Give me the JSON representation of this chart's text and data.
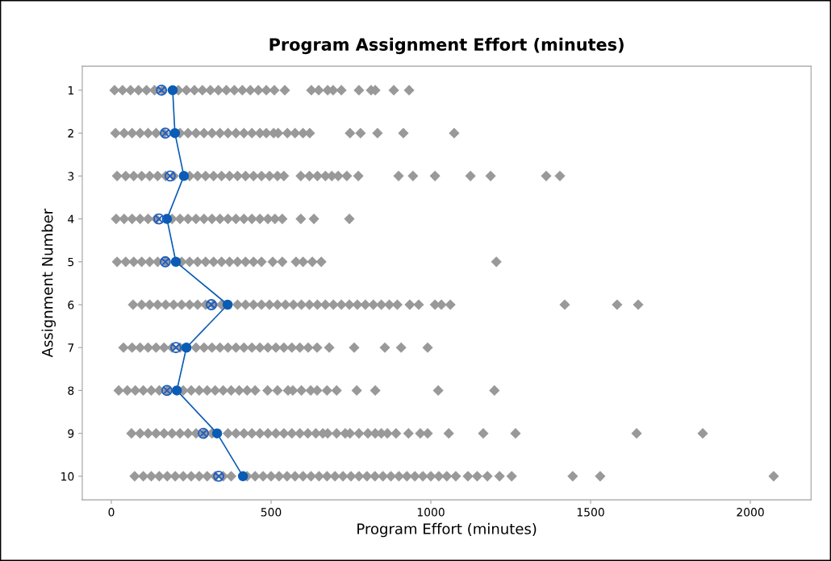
{
  "chart_data": {
    "type": "scatter",
    "title": "Program Assignment Effort (minutes)",
    "xlabel": "Program Effort (minutes)",
    "ylabel": "Assignment Number",
    "xlim": [
      -91,
      2190
    ],
    "xticks": [
      0,
      500,
      1000,
      1500,
      2000
    ],
    "ylim": [
      10.55,
      0.44
    ],
    "yticks": [
      1,
      2,
      3,
      4,
      5,
      6,
      7,
      8,
      9,
      10
    ],
    "grid": false,
    "series": [
      {
        "marker": "diamond",
        "color": "#999999",
        "x": [
          10,
          35,
          60,
          85,
          110,
          135,
          160,
          210,
          235,
          260,
          285,
          310,
          335,
          360,
          385,
          410,
          435,
          460,
          485,
          510,
          543,
          626,
          649,
          677,
          694,
          720,
          775,
          813,
          826,
          884,
          932
        ],
        "values": [
          1,
          1,
          1,
          1,
          1,
          1,
          1,
          1,
          1,
          1,
          1,
          1,
          1,
          1,
          1,
          1,
          1,
          1,
          1,
          1,
          1,
          1,
          1,
          1,
          1,
          1,
          1,
          1,
          1,
          1,
          1
        ]
      },
      {
        "marker": "diamond",
        "color": "#999999",
        "x": [
          13,
          40,
          65,
          90,
          115,
          140,
          165,
          215,
          240,
          265,
          290,
          315,
          340,
          365,
          390,
          415,
          440,
          465,
          485,
          508,
          522,
          551,
          575,
          600,
          621,
          747,
          780,
          833,
          914,
          1073
        ],
        "values": [
          2,
          2,
          2,
          2,
          2,
          2,
          2,
          2,
          2,
          2,
          2,
          2,
          2,
          2,
          2,
          2,
          2,
          2,
          2,
          2,
          2,
          2,
          2,
          2,
          2,
          2,
          2,
          2,
          2,
          2
        ]
      },
      {
        "marker": "diamond",
        "color": "#999999",
        "x": [
          18,
          45,
          70,
          95,
          120,
          145,
          170,
          195,
          245,
          270,
          295,
          320,
          345,
          370,
          395,
          420,
          445,
          470,
          495,
          520,
          540,
          593,
          620,
          645,
          670,
          690,
          710,
          737,
          773,
          899,
          944,
          1013,
          1124,
          1187,
          1361,
          1404
        ],
        "values": [
          3,
          3,
          3,
          3,
          3,
          3,
          3,
          3,
          3,
          3,
          3,
          3,
          3,
          3,
          3,
          3,
          3,
          3,
          3,
          3,
          3,
          3,
          3,
          3,
          3,
          3,
          3,
          3,
          3,
          3,
          3,
          3,
          3,
          3,
          3,
          3
        ]
      },
      {
        "marker": "diamond",
        "color": "#999999",
        "x": [
          15,
          40,
          65,
          90,
          115,
          140,
          190,
          215,
          240,
          265,
          290,
          315,
          340,
          365,
          390,
          415,
          440,
          465,
          490,
          512,
          535,
          593,
          634,
          745
        ],
        "values": [
          4,
          4,
          4,
          4,
          4,
          4,
          4,
          4,
          4,
          4,
          4,
          4,
          4,
          4,
          4,
          4,
          4,
          4,
          4,
          4,
          4,
          4,
          4,
          4
        ]
      },
      {
        "marker": "diamond",
        "color": "#999999",
        "x": [
          18,
          45,
          70,
          95,
          120,
          145,
          170,
          220,
          245,
          270,
          295,
          320,
          345,
          370,
          395,
          420,
          445,
          470,
          505,
          535,
          578,
          600,
          629,
          657,
          1205
        ],
        "values": [
          5,
          5,
          5,
          5,
          5,
          5,
          5,
          5,
          5,
          5,
          5,
          5,
          5,
          5,
          5,
          5,
          5,
          5,
          5,
          5,
          5,
          5,
          5,
          5,
          5
        ]
      },
      {
        "marker": "diamond",
        "color": "#999999",
        "x": [
          68,
          95,
          120,
          145,
          170,
          195,
          220,
          245,
          270,
          295,
          320,
          345,
          395,
          420,
          445,
          470,
          495,
          520,
          545,
          570,
          595,
          620,
          645,
          670,
          695,
          720,
          745,
          770,
          795,
          820,
          845,
          870,
          895,
          934,
          962,
          1013,
          1033,
          1061,
          1419,
          1583,
          1649
        ],
        "values": [
          6,
          6,
          6,
          6,
          6,
          6,
          6,
          6,
          6,
          6,
          6,
          6,
          6,
          6,
          6,
          6,
          6,
          6,
          6,
          6,
          6,
          6,
          6,
          6,
          6,
          6,
          6,
          6,
          6,
          6,
          6,
          6,
          6,
          6,
          6,
          6,
          6,
          6,
          6,
          6,
          6
        ]
      },
      {
        "marker": "diamond",
        "color": "#999999",
        "x": [
          38,
          65,
          90,
          115,
          140,
          165,
          190,
          215,
          265,
          290,
          315,
          340,
          365,
          390,
          415,
          440,
          465,
          490,
          515,
          540,
          565,
          590,
          616,
          644,
          682,
          760,
          856,
          907,
          990
        ],
        "values": [
          7,
          7,
          7,
          7,
          7,
          7,
          7,
          7,
          7,
          7,
          7,
          7,
          7,
          7,
          7,
          7,
          7,
          7,
          7,
          7,
          7,
          7,
          7,
          7,
          7,
          7,
          7,
          7,
          7
        ]
      },
      {
        "marker": "diamond",
        "color": "#999999",
        "x": [
          23,
          50,
          75,
          100,
          125,
          150,
          175,
          225,
          250,
          275,
          300,
          325,
          350,
          375,
          400,
          425,
          450,
          489,
          520,
          553,
          568,
          595,
          624,
          644,
          675,
          705,
          768,
          826,
          1023,
          1199
        ],
        "values": [
          8,
          8,
          8,
          8,
          8,
          8,
          8,
          8,
          8,
          8,
          8,
          8,
          8,
          8,
          8,
          8,
          8,
          8,
          8,
          8,
          8,
          8,
          8,
          8,
          8,
          8,
          8,
          8,
          8,
          8
        ]
      },
      {
        "marker": "diamond",
        "color": "#999999",
        "x": [
          63,
          90,
          115,
          140,
          165,
          190,
          215,
          240,
          265,
          290,
          315,
          365,
          390,
          415,
          440,
          465,
          490,
          515,
          540,
          565,
          590,
          615,
          640,
          662,
          677,
          705,
          732,
          747,
          775,
          803,
          826,
          845,
          864,
          891,
          930,
          967,
          990,
          1056,
          1164,
          1265,
          1644,
          1851
        ],
        "values": [
          9,
          9,
          9,
          9,
          9,
          9,
          9,
          9,
          9,
          9,
          9,
          9,
          9,
          9,
          9,
          9,
          9,
          9,
          9,
          9,
          9,
          9,
          9,
          9,
          9,
          9,
          9,
          9,
          9,
          9,
          9,
          9,
          9,
          9,
          9,
          9,
          9,
          9,
          9,
          9,
          9,
          9
        ]
      },
      {
        "marker": "diamond",
        "color": "#999999",
        "x": [
          73,
          100,
          125,
          150,
          175,
          200,
          225,
          250,
          275,
          300,
          325,
          350,
          375,
          425,
          450,
          475,
          500,
          525,
          550,
          575,
          600,
          625,
          650,
          675,
          700,
          725,
          750,
          775,
          800,
          825,
          850,
          875,
          900,
          925,
          950,
          975,
          1000,
          1025,
          1050,
          1078,
          1116,
          1145,
          1177,
          1215,
          1253,
          1444,
          1530,
          2073
        ],
        "values": [
          10,
          10,
          10,
          10,
          10,
          10,
          10,
          10,
          10,
          10,
          10,
          10,
          10,
          10,
          10,
          10,
          10,
          10,
          10,
          10,
          10,
          10,
          10,
          10,
          10,
          10,
          10,
          10,
          10,
          10,
          10,
          10,
          10,
          10,
          10,
          10,
          10,
          10,
          10,
          10,
          10,
          10,
          10,
          10,
          10,
          10,
          10,
          10
        ]
      },
      {
        "marker": "cross",
        "color": "#1f5fbf",
        "x": [
          157,
          169,
          184,
          149,
          169,
          313,
          202,
          174,
          288,
          336
        ],
        "values": [
          1,
          2,
          3,
          4,
          5,
          6,
          7,
          8,
          9,
          10
        ]
      },
      {
        "type": "line",
        "marker": "circle",
        "color": "#0b5cb5",
        "x": [
          192,
          199,
          227,
          174,
          202,
          364,
          235,
          205,
          331,
          412
        ],
        "values": [
          1,
          2,
          3,
          4,
          5,
          6,
          7,
          8,
          9,
          10
        ]
      }
    ]
  }
}
